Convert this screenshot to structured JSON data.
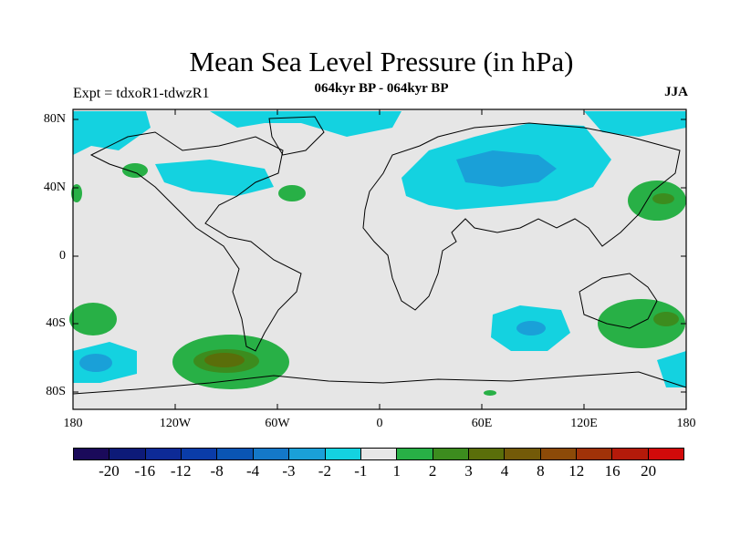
{
  "title": "Mean Sea Level Pressure (in hPa)",
  "subtitle": "064kyr BP - 064kyr BP",
  "experiment": "Expt = tdxoR1-tdwzR1",
  "season": "JJA",
  "map": {
    "type": "global anomaly map",
    "lat_labels": [
      "80N",
      "40N",
      "0",
      "40S",
      "80S"
    ],
    "lon_labels": [
      "180",
      "120W",
      "60W",
      "0",
      "60E",
      "120E",
      "180"
    ],
    "background_color": "#e6e6e6"
  },
  "colorbar": {
    "colors": [
      "#1a0a5a",
      "#0d1a78",
      "#0d2a96",
      "#0a3ca8",
      "#0a55b4",
      "#1478c8",
      "#1aa0d8",
      "#14d2e0",
      "#e6e6e6",
      "#28b046",
      "#3c8c1e",
      "#5a6e0a",
      "#735a08",
      "#8c4a08",
      "#a03208",
      "#b41a0a",
      "#d20a0a"
    ],
    "labels": [
      "-20",
      "-16",
      "-12",
      "-8",
      "-4",
      "-3",
      "-2",
      "-1",
      "1",
      "2",
      "3",
      "4",
      "8",
      "12",
      "16",
      "20"
    ]
  }
}
